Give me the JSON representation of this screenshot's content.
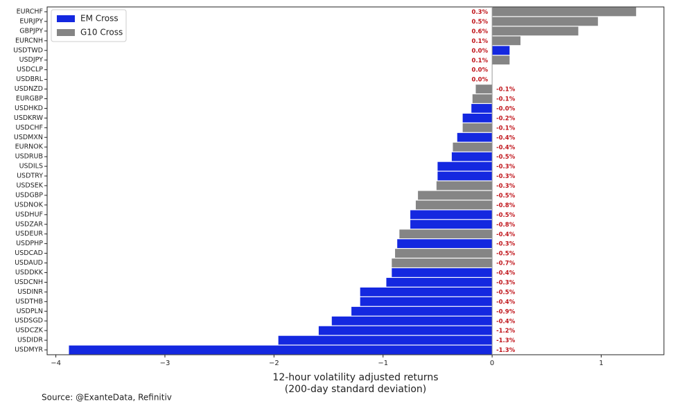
{
  "chart_data": {
    "type": "barh",
    "categories": [
      "EURCHF",
      "EURJPY",
      "GBPJPY",
      "EURCNH",
      "USDTWD",
      "USDJPY",
      "USDCLP",
      "USDBRL",
      "USDNZD",
      "EURGBP",
      "USDHKD",
      "USDKRW",
      "USDCHF",
      "USDMXN",
      "EURNOK",
      "USDRUB",
      "USDILS",
      "USDTRY",
      "USDSEK",
      "USDGBP",
      "USDNOK",
      "USDHUF",
      "USDZAR",
      "USDEUR",
      "USDPHP",
      "USDCAD",
      "USDAUD",
      "USDDKK",
      "USDCNH",
      "USDINR",
      "USDTHB",
      "USDPLN",
      "USDSGD",
      "USDCZK",
      "USDIDR",
      "USDMYR"
    ],
    "series": [
      {
        "name": "EM Cross",
        "color": "#1428e0",
        "values": [
          null,
          null,
          null,
          null,
          0.16,
          null,
          0,
          0,
          null,
          null,
          -0.19,
          -0.27,
          null,
          -0.32,
          null,
          -0.37,
          -0.5,
          -0.5,
          null,
          null,
          null,
          -0.75,
          -0.75,
          null,
          -0.87,
          null,
          null,
          -0.92,
          -0.97,
          -1.21,
          -1.21,
          -1.29,
          -1.47,
          -1.59,
          -1.96,
          -3.88
        ]
      },
      {
        "name": "G10 Cross",
        "color": "#858585",
        "values": [
          1.32,
          0.97,
          0.79,
          0.26,
          null,
          0.16,
          null,
          null,
          -0.15,
          -0.18,
          null,
          null,
          -0.27,
          null,
          -0.36,
          null,
          null,
          null,
          -0.51,
          -0.68,
          -0.7,
          null,
          null,
          -0.85,
          null,
          -0.89,
          -0.92,
          null,
          null,
          null,
          null,
          null,
          null,
          null,
          null,
          null
        ]
      }
    ],
    "value_annotations": [
      "0.3%",
      "0.5%",
      "0.6%",
      "0.1%",
      "0.0%",
      "0.1%",
      "0.0%",
      "0.0%",
      "-0.1%",
      "-0.1%",
      "-0.0%",
      "-0.2%",
      "-0.1%",
      "-0.4%",
      "-0.4%",
      "-0.5%",
      "-0.3%",
      "-0.3%",
      "-0.3%",
      "-0.5%",
      "-0.8%",
      "-0.5%",
      "-0.8%",
      "-0.4%",
      "-0.3%",
      "-0.5%",
      "-0.7%",
      "-0.4%",
      "-0.3%",
      "-0.5%",
      "-0.4%",
      "-0.9%",
      "-0.4%",
      "-1.2%",
      "-1.3%",
      "-1.3%"
    ],
    "xlim": [
      -4.08,
      1.575
    ],
    "xticks": [
      {
        "value": -4,
        "label": "−4"
      },
      {
        "value": -3,
        "label": "−3"
      },
      {
        "value": -2,
        "label": "−2"
      },
      {
        "value": -1,
        "label": "−1"
      },
      0,
      1
    ],
    "xlabel": [
      "12-hour volatility adjusted returns",
      "(200-day standard deviation)"
    ],
    "source": "Source: @ExanteData, Refinitiv",
    "legend": "upper left"
  }
}
